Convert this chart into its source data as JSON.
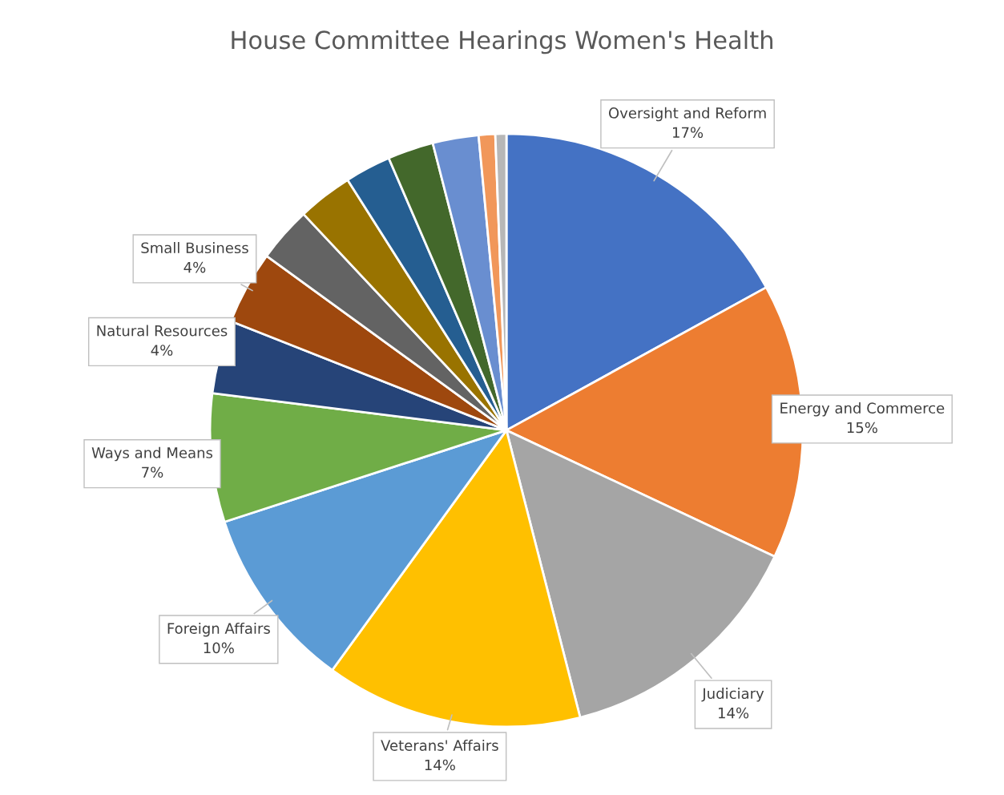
{
  "chart_data": {
    "type": "pie",
    "title": "House Committee Hearings Women's Health",
    "categories": [
      "Oversight and Reform",
      "Energy and Commerce",
      "Judiciary",
      "Veterans' Affairs",
      "Foreign Affairs",
      "Ways and Means",
      "Natural Resources",
      "Small Business",
      null,
      null,
      null,
      null,
      null,
      null,
      null
    ],
    "values": [
      17,
      15,
      14,
      14,
      10,
      7,
      4,
      4,
      3,
      3,
      2.5,
      2.5,
      2.5,
      0.9,
      0.6
    ],
    "value_labels": [
      "17%",
      "15%",
      "14%",
      "14%",
      "10%",
      "7%",
      "4%",
      "4%",
      null,
      null,
      null,
      null,
      null,
      null,
      null
    ],
    "colors": [
      "#4472c4",
      "#ed7d31",
      "#a5a5a5",
      "#ffc000",
      "#5b9bd5",
      "#70ad47",
      "#264478",
      "#9e480e",
      "#636363",
      "#997300",
      "#255e91",
      "#43682b",
      "#698ed0",
      "#f1975a",
      "#b7b7b7"
    ]
  }
}
